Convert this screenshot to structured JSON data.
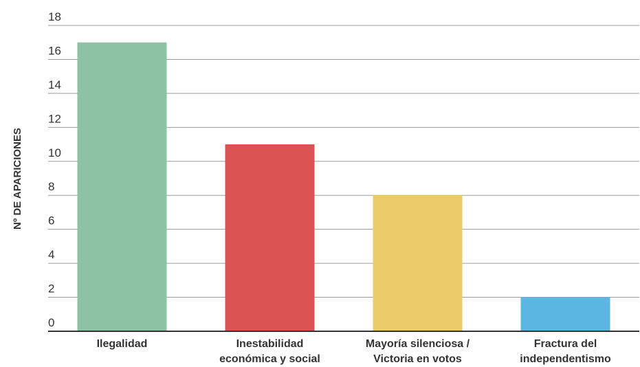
{
  "chart_data": {
    "type": "bar",
    "title": "",
    "xlabel": "",
    "ylabel": "Nº DE APARICIONES",
    "ylim": [
      0,
      18
    ],
    "yticks": [
      0,
      2,
      4,
      6,
      8,
      10,
      12,
      14,
      16,
      18
    ],
    "grid": true,
    "categories": [
      [
        "Ilegalidad"
      ],
      [
        "Inestabilidad",
        "económica y social"
      ],
      [
        "Mayoría silenciosa /",
        "Victoria en votos"
      ],
      [
        "Fractura del",
        "independentismo"
      ]
    ],
    "values": [
      17,
      11,
      8,
      2
    ],
    "colors": [
      "#8dc2a5",
      "#db5254",
      "#edca6b",
      "#5db5e3"
    ]
  }
}
